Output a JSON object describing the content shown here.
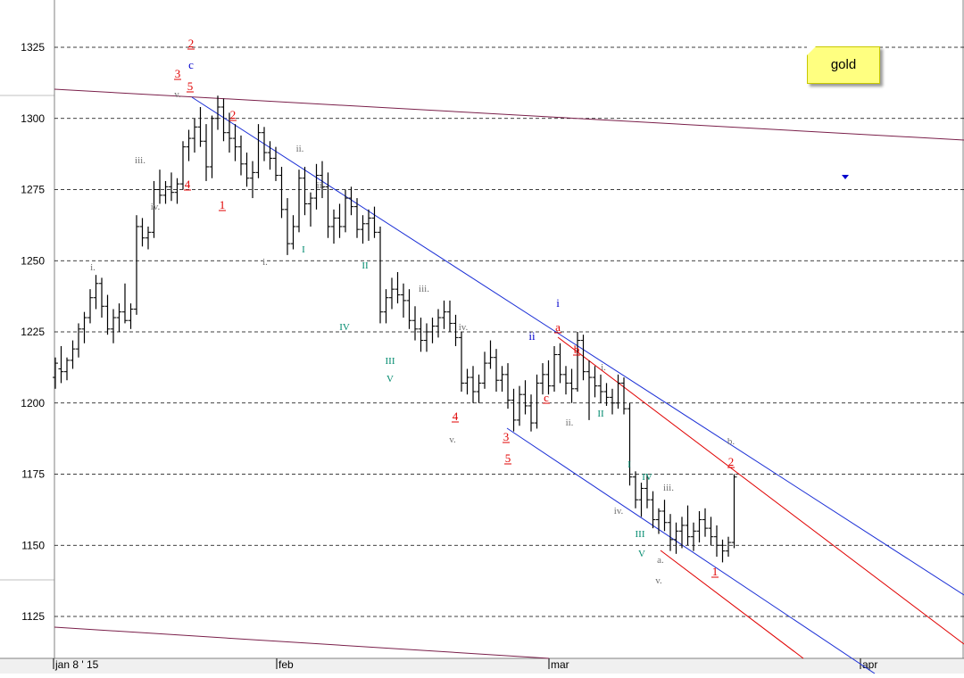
{
  "window": {
    "title": "gold"
  },
  "note": {
    "text": "gold"
  },
  "colors": {
    "red": "#e00000",
    "blue": "#0000cc",
    "teal": "#008a6e",
    "gray": "#707070",
    "purple": "#7a1f4a",
    "channel_blue": "#1b2fd6",
    "channel_red": "#e00000"
  },
  "chart_data": {
    "type": "candlestick",
    "title": "gold",
    "ylim": [
      1111,
      1340
    ],
    "y_ticks": [
      1125,
      1150,
      1175,
      1200,
      1225,
      1250,
      1275,
      1300,
      1325
    ],
    "y_tick_labels": [
      "1125",
      "1150",
      "1175",
      "1200",
      "1225",
      "1250",
      "1275",
      "1300",
      "1325"
    ],
    "x_labels": [
      "jan 8 ' 15",
      "feb",
      "mar",
      "apr"
    ],
    "grid": "horizontal dashed",
    "bars": [
      [
        0,
        1209,
        1216,
        1205,
        1214
      ],
      [
        1,
        1212,
        1220,
        1207,
        1211
      ],
      [
        2,
        1211,
        1216,
        1208,
        1215
      ],
      [
        3,
        1215,
        1222,
        1212,
        1219
      ],
      [
        4,
        1219,
        1228,
        1216,
        1226
      ],
      [
        5,
        1226,
        1232,
        1221,
        1230
      ],
      [
        6,
        1230,
        1240,
        1228,
        1237
      ],
      [
        7,
        1237,
        1245,
        1233,
        1242
      ],
      [
        8,
        1242,
        1244,
        1230,
        1234
      ],
      [
        9,
        1234,
        1238,
        1224,
        1226
      ],
      [
        10,
        1226,
        1233,
        1221,
        1230
      ],
      [
        11,
        1230,
        1235,
        1225,
        1232
      ],
      [
        12,
        1232,
        1242,
        1228,
        1229
      ],
      [
        13,
        1229,
        1235,
        1226,
        1233
      ],
      [
        14,
        1233,
        1266,
        1231,
        1262
      ],
      [
        15,
        1262,
        1265,
        1255,
        1258
      ],
      [
        16,
        1258,
        1262,
        1254,
        1260
      ],
      [
        17,
        1260,
        1278,
        1258,
        1275
      ],
      [
        18,
        1275,
        1282,
        1270,
        1273
      ],
      [
        19,
        1273,
        1278,
        1270,
        1276
      ],
      [
        20,
        1276,
        1281,
        1271,
        1274
      ],
      [
        21,
        1274,
        1279,
        1270,
        1277
      ],
      [
        22,
        1277,
        1292,
        1275,
        1290
      ],
      [
        23,
        1290,
        1296,
        1285,
        1293
      ],
      [
        24,
        1293,
        1300,
        1288,
        1297
      ],
      [
        25,
        1297,
        1304,
        1290,
        1292
      ],
      [
        26,
        1292,
        1298,
        1278,
        1283
      ],
      [
        27,
        1283,
        1301,
        1279,
        1300
      ],
      [
        28,
        1300,
        1308,
        1296,
        1304
      ],
      [
        29,
        1304,
        1307,
        1292,
        1295
      ],
      [
        30,
        1295,
        1302,
        1288,
        1293
      ],
      [
        31,
        1293,
        1298,
        1285,
        1290
      ],
      [
        32,
        1290,
        1294,
        1280,
        1284
      ],
      [
        33,
        1284,
        1288,
        1276,
        1279
      ],
      [
        34,
        1279,
        1285,
        1272,
        1281
      ],
      [
        35,
        1281,
        1298,
        1279,
        1295
      ],
      [
        36,
        1295,
        1297,
        1285,
        1288
      ],
      [
        37,
        1288,
        1292,
        1282,
        1286
      ],
      [
        38,
        1286,
        1290,
        1278,
        1280
      ],
      [
        39,
        1280,
        1283,
        1265,
        1268
      ],
      [
        40,
        1268,
        1272,
        1252,
        1256
      ],
      [
        41,
        1256,
        1266,
        1254,
        1262
      ],
      [
        42,
        1262,
        1282,
        1260,
        1279
      ],
      [
        43,
        1279,
        1283,
        1266,
        1270
      ],
      [
        44,
        1270,
        1274,
        1262,
        1272
      ],
      [
        45,
        1272,
        1284,
        1268,
        1280
      ],
      [
        46,
        1280,
        1285,
        1272,
        1276
      ],
      [
        47,
        1276,
        1281,
        1258,
        1262
      ],
      [
        48,
        1262,
        1268,
        1256,
        1265
      ],
      [
        49,
        1265,
        1270,
        1258,
        1262
      ],
      [
        50,
        1262,
        1275,
        1260,
        1272
      ],
      [
        51,
        1272,
        1276,
        1266,
        1269
      ],
      [
        52,
        1269,
        1272,
        1258,
        1261
      ],
      [
        53,
        1261,
        1266,
        1256,
        1263
      ],
      [
        54,
        1263,
        1268,
        1257,
        1265
      ],
      [
        55,
        1265,
        1269,
        1258,
        1260
      ],
      [
        56,
        1260,
        1262,
        1228,
        1232
      ],
      [
        57,
        1232,
        1240,
        1228,
        1237
      ],
      [
        58,
        1237,
        1244,
        1233,
        1240
      ],
      [
        59,
        1240,
        1246,
        1235,
        1238
      ],
      [
        60,
        1238,
        1242,
        1230,
        1236
      ],
      [
        61,
        1236,
        1240,
        1226,
        1229
      ],
      [
        62,
        1229,
        1234,
        1222,
        1226
      ],
      [
        63,
        1226,
        1230,
        1218,
        1222
      ],
      [
        64,
        1222,
        1228,
        1218,
        1225
      ],
      [
        65,
        1225,
        1230,
        1221,
        1227
      ],
      [
        66,
        1227,
        1233,
        1223,
        1230
      ],
      [
        67,
        1230,
        1236,
        1226,
        1232
      ],
      [
        68,
        1232,
        1236,
        1225,
        1228
      ],
      [
        69,
        1228,
        1231,
        1220,
        1223
      ],
      [
        70,
        1223,
        1225,
        1204,
        1207
      ],
      [
        71,
        1207,
        1212,
        1203,
        1209
      ],
      [
        72,
        1209,
        1213,
        1200,
        1204
      ],
      [
        73,
        1204,
        1210,
        1200,
        1207
      ],
      [
        74,
        1207,
        1218,
        1205,
        1214
      ],
      [
        75,
        1214,
        1222,
        1212,
        1216
      ],
      [
        76,
        1216,
        1219,
        1204,
        1208
      ],
      [
        77,
        1208,
        1213,
        1204,
        1210
      ],
      [
        78,
        1210,
        1214,
        1198,
        1201
      ],
      [
        79,
        1201,
        1205,
        1190,
        1194
      ],
      [
        80,
        1194,
        1206,
        1192,
        1203
      ],
      [
        81,
        1203,
        1208,
        1196,
        1199
      ],
      [
        82,
        1199,
        1203,
        1190,
        1193
      ],
      [
        83,
        1193,
        1210,
        1191,
        1207
      ],
      [
        84,
        1207,
        1214,
        1203,
        1210
      ],
      [
        85,
        1210,
        1215,
        1203,
        1206
      ],
      [
        86,
        1206,
        1220,
        1204,
        1217
      ],
      [
        87,
        1217,
        1221,
        1207,
        1210
      ],
      [
        88,
        1210,
        1213,
        1203,
        1207
      ],
      [
        89,
        1207,
        1212,
        1200,
        1205
      ],
      [
        90,
        1205,
        1225,
        1204,
        1222
      ],
      [
        91,
        1222,
        1224,
        1208,
        1211
      ],
      [
        92,
        1211,
        1215,
        1194,
        1209
      ],
      [
        93,
        1209,
        1213,
        1202,
        1206
      ],
      [
        94,
        1206,
        1210,
        1200,
        1204
      ],
      [
        95,
        1204,
        1207,
        1199,
        1202
      ],
      [
        96,
        1202,
        1205,
        1196,
        1200
      ],
      [
        97,
        1200,
        1210,
        1198,
        1207
      ],
      [
        98,
        1207,
        1209,
        1196,
        1198
      ],
      [
        99,
        1198,
        1200,
        1171,
        1174
      ],
      [
        100,
        1174,
        1176,
        1163,
        1166
      ],
      [
        101,
        1166,
        1172,
        1160,
        1170
      ],
      [
        102,
        1170,
        1175,
        1163,
        1166
      ],
      [
        103,
        1166,
        1169,
        1156,
        1159
      ],
      [
        104,
        1159,
        1163,
        1154,
        1162
      ],
      [
        105,
        1162,
        1166,
        1155,
        1158
      ],
      [
        106,
        1158,
        1161,
        1148,
        1152
      ],
      [
        107,
        1152,
        1158,
        1147,
        1155
      ],
      [
        108,
        1155,
        1160,
        1149,
        1157
      ],
      [
        109,
        1157,
        1164,
        1150,
        1153
      ],
      [
        110,
        1153,
        1158,
        1148,
        1155
      ],
      [
        111,
        1155,
        1162,
        1151,
        1159
      ],
      [
        112,
        1159,
        1163,
        1153,
        1156
      ],
      [
        113,
        1156,
        1160,
        1150,
        1153
      ],
      [
        114,
        1153,
        1157,
        1146,
        1150
      ],
      [
        115,
        1150,
        1152,
        1144,
        1148
      ],
      [
        116,
        1148,
        1153,
        1146,
        1151
      ],
      [
        117,
        1151,
        1175,
        1149,
        1174
      ]
    ],
    "wave_labels": [
      {
        "text": "2",
        "color": "red"
      },
      {
        "text": "c",
        "color": "blue"
      },
      {
        "text": "3",
        "color": "red"
      },
      {
        "text": "5",
        "color": "red"
      },
      {
        "text": "v.",
        "color": "gray"
      },
      {
        "text": "4",
        "color": "red"
      },
      {
        "text": "1",
        "color": "red"
      },
      {
        "text": "2",
        "color": "red"
      },
      {
        "text": "iii.",
        "color": "gray"
      },
      {
        "text": "iv.",
        "color": "gray"
      },
      {
        "text": "i.",
        "color": "gray"
      },
      {
        "text": "ii.",
        "color": "gray"
      },
      {
        "text": "ii.",
        "color": "gray"
      },
      {
        "text": "i.",
        "color": "gray"
      },
      {
        "text": "I",
        "color": "teal"
      },
      {
        "text": "II",
        "color": "teal"
      },
      {
        "text": "IV",
        "color": "teal"
      },
      {
        "text": "III",
        "color": "teal"
      },
      {
        "text": "V",
        "color": "teal"
      },
      {
        "text": "iii.",
        "color": "gray"
      },
      {
        "text": "iv.",
        "color": "gray"
      },
      {
        "text": "4",
        "color": "red"
      },
      {
        "text": "v.",
        "color": "gray"
      },
      {
        "text": "3",
        "color": "red"
      },
      {
        "text": "5",
        "color": "red"
      },
      {
        "text": "i",
        "color": "blue"
      },
      {
        "text": "ii",
        "color": "blue"
      },
      {
        "text": "a",
        "color": "red"
      },
      {
        "text": "c",
        "color": "red"
      },
      {
        "text": "b",
        "color": "red"
      },
      {
        "text": "ii.",
        "color": "gray"
      },
      {
        "text": "i.",
        "color": "gray"
      },
      {
        "text": "II",
        "color": "teal"
      },
      {
        "text": "I",
        "color": "teal"
      },
      {
        "text": "IV",
        "color": "teal"
      },
      {
        "text": "iv.",
        "color": "gray"
      },
      {
        "text": "III",
        "color": "teal"
      },
      {
        "text": "V",
        "color": "teal"
      },
      {
        "text": "iii.",
        "color": "gray"
      },
      {
        "text": "a.",
        "color": "gray"
      },
      {
        "text": "v.",
        "color": "gray"
      },
      {
        "text": "1",
        "color": "red"
      },
      {
        "text": "b.",
        "color": "gray"
      },
      {
        "text": "2",
        "color": "red"
      },
      {
        "text": "c.",
        "color": "gray"
      }
    ]
  }
}
